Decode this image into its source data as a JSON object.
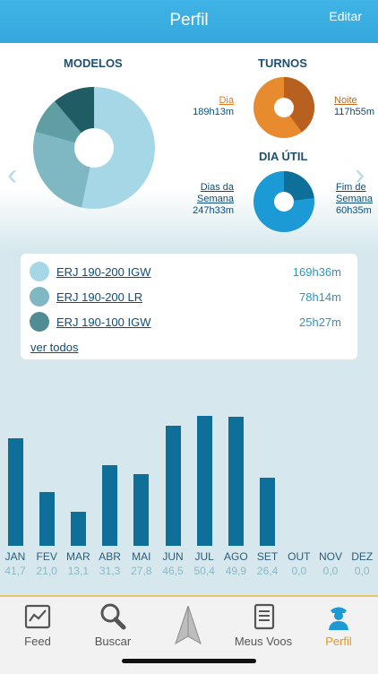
{
  "header": {
    "title": "Perfil",
    "edit_label": "Editar"
  },
  "sections": {
    "models": "MODELOS",
    "shifts": "TURNOS",
    "workday": "DIA ÚTIL"
  },
  "shifts": {
    "day": {
      "label": "Dia",
      "value": "189h13m"
    },
    "night": {
      "label": "Noite",
      "value": "117h55m"
    }
  },
  "workday": {
    "weekdays": {
      "label1": "Dias da",
      "label2": "Semana",
      "value": "247h33m"
    },
    "weekend": {
      "label1": "Fim de",
      "label2": "Semana",
      "value": "60h35m"
    }
  },
  "models": {
    "items": [
      {
        "name": "ERJ 190-200 IGW",
        "value": "169h36m",
        "color": "#a6d7e6"
      },
      {
        "name": "ERJ 190-200 LR",
        "value": "78h14m",
        "color": "#7fb7c2"
      },
      {
        "name": "ERJ 190-100 IGW",
        "value": "25h27m",
        "color": "#4f8c93"
      }
    ],
    "see_all": "ver todos"
  },
  "colors": {
    "accent": "#35a7dc",
    "bar": "#0e6f98",
    "orange": "#e88a2e",
    "orange_dark": "#b86020",
    "blue": "#1b9ad6",
    "blue_dark": "#0e6f98",
    "model_dark": "#1f5c63"
  },
  "chart_data": {
    "type": "bar",
    "categories": [
      "JAN",
      "FEV",
      "MAR",
      "ABR",
      "MAI",
      "JUN",
      "JUL",
      "AGO",
      "SET",
      "OUT",
      "NOV",
      "DEZ"
    ],
    "values": [
      41.7,
      21.0,
      13.1,
      31.3,
      27.8,
      46.5,
      50.4,
      49.9,
      26.4,
      0.0,
      0.0,
      0.0
    ],
    "value_labels": [
      "41,7",
      "21,0",
      "13,1",
      "31,3",
      "27,8",
      "46,5",
      "50,4",
      "49,9",
      "26,4",
      "0,0",
      "0,0",
      "0,0"
    ],
    "ylim": [
      0,
      50.4
    ]
  },
  "tabs": [
    {
      "label": "Feed",
      "icon": "chart-icon"
    },
    {
      "label": "Buscar",
      "icon": "search-icon"
    },
    {
      "label": "",
      "icon": "paper-plane-icon"
    },
    {
      "label": "Meus Voos",
      "icon": "logbook-icon"
    },
    {
      "label": "Perfil",
      "icon": "pilot-icon",
      "active": true
    }
  ]
}
